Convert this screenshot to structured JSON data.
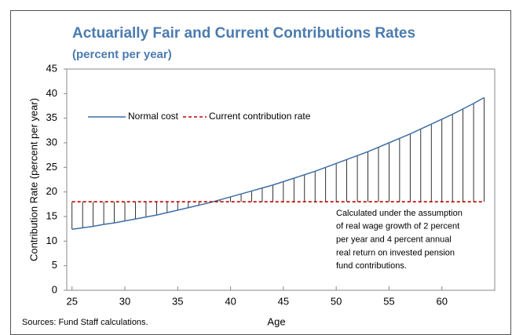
{
  "chart_data": {
    "type": "line",
    "title": "Actuarially Fair and Current Contributions Rates",
    "subtitle": "(percent per year)",
    "x_label": "Age",
    "y_label": "Contribution Rate (percent per year)",
    "source": "Sources: Fund Staff calculations.",
    "annotation": [
      "Calculated under the assumption",
      "of real wage growth of 2 percent",
      "per year and 4 percent annual",
      "real return on invested pension",
      "fund contributions."
    ],
    "x": [
      25,
      26,
      27,
      28,
      29,
      30,
      31,
      32,
      33,
      34,
      35,
      36,
      37,
      38,
      39,
      40,
      41,
      42,
      43,
      44,
      45,
      46,
      47,
      48,
      49,
      50,
      51,
      52,
      53,
      54,
      55,
      56,
      57,
      58,
      59,
      60,
      61,
      62,
      63,
      64
    ],
    "series": [
      {
        "name": "Normal cost",
        "color": "#3e6fa6",
        "dash": false,
        "values": [
          12.4,
          12.7,
          13.0,
          13.4,
          13.7,
          14.1,
          14.5,
          14.9,
          15.3,
          15.8,
          16.3,
          16.8,
          17.3,
          17.8,
          18.4,
          19.0,
          19.6,
          20.2,
          20.8,
          21.4,
          22.1,
          22.8,
          23.5,
          24.2,
          25.0,
          25.8,
          26.6,
          27.4,
          28.2,
          29.1,
          30.0,
          30.9,
          31.8,
          32.8,
          33.8,
          34.8,
          35.8,
          36.9,
          38.0,
          39.2
        ]
      },
      {
        "name": "Current contribution rate",
        "color": "#c00000",
        "dash": true,
        "values": [
          18,
          18,
          18,
          18,
          18,
          18,
          18,
          18,
          18,
          18,
          18,
          18,
          18,
          18,
          18,
          18,
          18,
          18,
          18,
          18,
          18,
          18,
          18,
          18,
          18,
          18,
          18,
          18,
          18,
          18,
          18,
          18,
          18,
          18,
          18,
          18,
          18,
          18,
          18,
          18
        ]
      }
    ],
    "xlim": [
      24.5,
      65
    ],
    "xticks": [
      25,
      30,
      35,
      40,
      45,
      50,
      55,
      60
    ],
    "ylim": [
      0,
      45
    ],
    "yticks": [
      0,
      5,
      10,
      15,
      20,
      25,
      30,
      35,
      40,
      45
    ],
    "grid": false,
    "legend": "top-left"
  }
}
